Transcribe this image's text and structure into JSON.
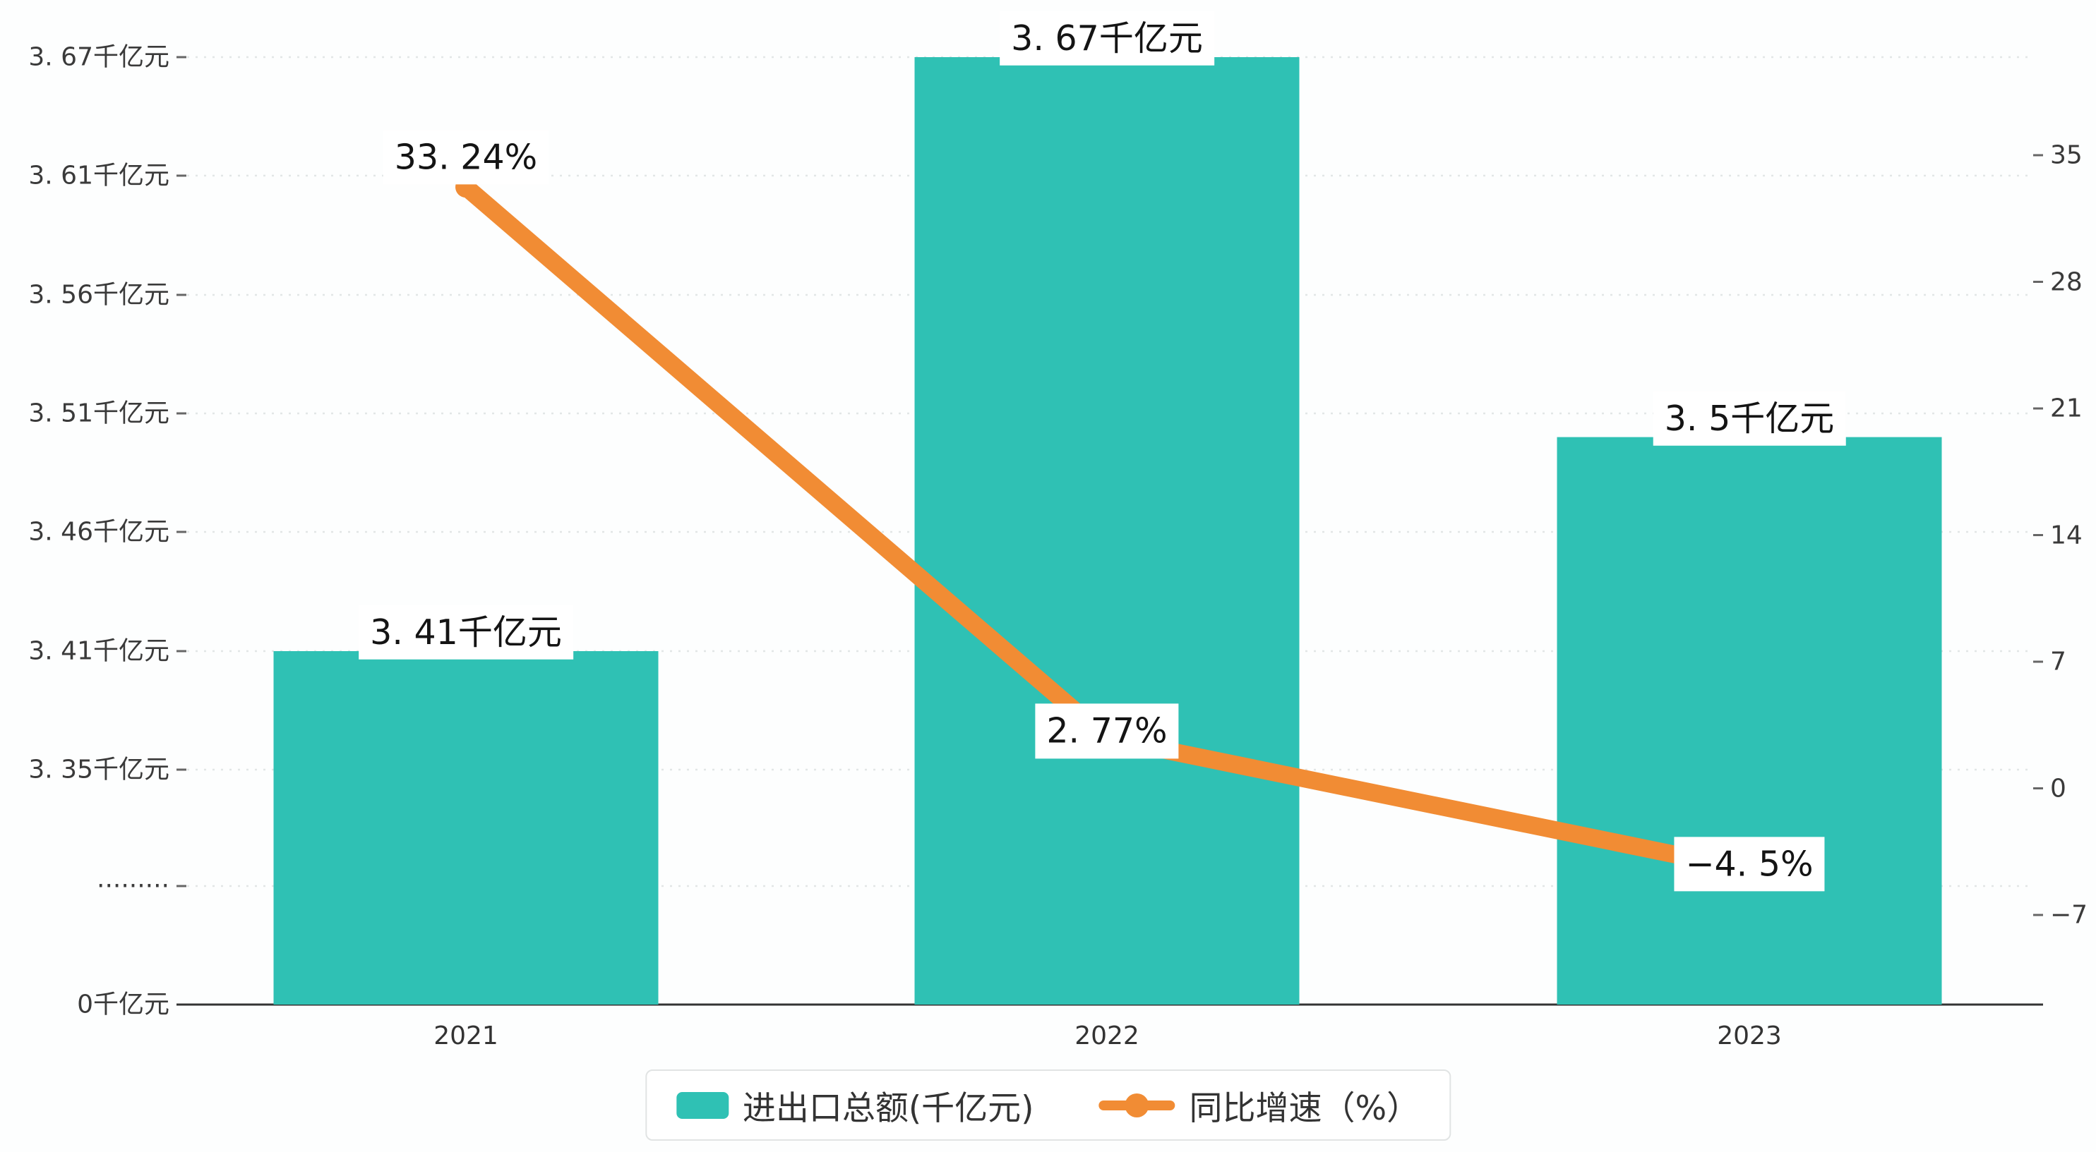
{
  "chart_data": {
    "type": "bar",
    "subtype": "bar-line dual-axis combo",
    "categories": [
      "2021",
      "2022",
      "2023"
    ],
    "series": [
      {
        "name": "进出口总额(千亿元)",
        "type": "bar",
        "axis": "left",
        "color": "#2FC1B4",
        "values": [
          3.41,
          3.67,
          3.5
        ],
        "labels": [
          "3. 41千亿元",
          "3. 67千亿元",
          "3. 5千亿元"
        ]
      },
      {
        "name": "同比增速（%）",
        "type": "line",
        "axis": "right",
        "color": "#F18C34",
        "values": [
          33.24,
          2.77,
          -4.5
        ],
        "labels": [
          "33. 24%",
          "2. 77%",
          "−4. 5%"
        ]
      }
    ],
    "left_axis": {
      "tick_labels": [
        "3. 67千亿元",
        "3. 61千亿元",
        "3. 56千亿元",
        "3. 51千亿元",
        "3. 46千亿元",
        "3. 41千亿元",
        "3. 35千亿元",
        "·········",
        "0千亿元"
      ],
      "tick_values": [
        3.67,
        3.61,
        3.56,
        3.51,
        3.46,
        3.41,
        3.35,
        null,
        0
      ],
      "axis_break": true,
      "unit": "千亿元"
    },
    "right_axis": {
      "tick_labels": [
        "35",
        "28",
        "21",
        "14",
        "7",
        "0",
        "−7"
      ],
      "tick_values": [
        35,
        28,
        21,
        14,
        7,
        0,
        -7
      ],
      "range": [
        -7,
        35
      ],
      "unit": "%"
    },
    "legend": {
      "position": "bottom-center",
      "items": [
        {
          "label": "进出口总额(千亿元)",
          "marker": "bar-swatch",
          "color": "#2FC1B4"
        },
        {
          "label": "同比增速（%）",
          "marker": "line-dot",
          "color": "#F18C34"
        }
      ]
    },
    "grid": "dashed horizontal lines",
    "title": ""
  },
  "colors": {
    "bar": "#2FC1B4",
    "line": "#F18C34",
    "axis": "#333333",
    "grid": "#e2e6e6",
    "label_text": "#141414",
    "background": "#fdfefe"
  }
}
